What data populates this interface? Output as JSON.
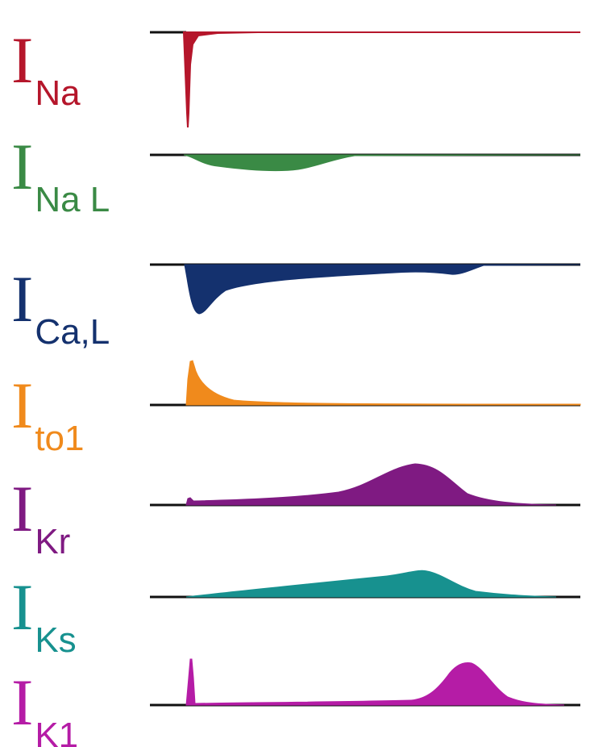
{
  "traces": [
    {
      "id": "ina",
      "main": "I",
      "sub": "Na",
      "color": "#b5162b",
      "direction": "inward"
    },
    {
      "id": "inal",
      "main": "I",
      "sub": "Na L",
      "color": "#3a8a45",
      "direction": "inward"
    },
    {
      "id": "ical",
      "main": "I",
      "sub": "Ca,L",
      "color": "#14316e",
      "direction": "inward"
    },
    {
      "id": "ito1",
      "main": "I",
      "sub": "to1",
      "color": "#f08a1c",
      "direction": "outward"
    },
    {
      "id": "ikr",
      "main": "I",
      "sub": "Kr",
      "color": "#7f1a82",
      "direction": "outward"
    },
    {
      "id": "iks",
      "main": "I",
      "sub": "Ks",
      "color": "#17918f",
      "direction": "outward"
    },
    {
      "id": "ik1",
      "main": "I",
      "sub": "K1",
      "color": "#b51ca6",
      "direction": "outward"
    }
  ],
  "baseline_color": "#111111"
}
